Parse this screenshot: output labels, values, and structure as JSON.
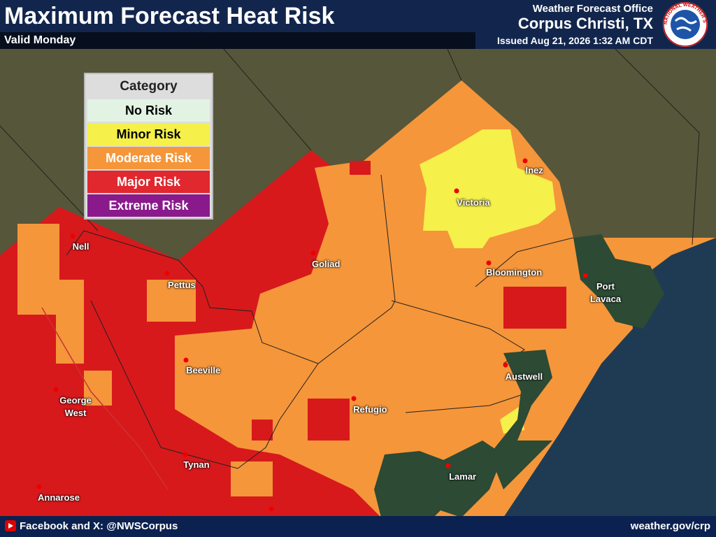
{
  "header": {
    "title": "Maximum Forecast Heat Risk",
    "valid": "Valid Monday",
    "office_label": "Weather Forecast Office",
    "office": "Corpus Christi, TX",
    "issued": "Issued Aug 21, 2026 1:32 AM CDT",
    "logo_text": "NATIONAL WEATHER SERVICE"
  },
  "legend": {
    "title": "Category",
    "items": [
      "No Risk",
      "Minor Risk",
      "Moderate Risk",
      "Major Risk",
      "Extreme Risk"
    ]
  },
  "cities": [
    "Inez",
    "Victoria",
    "Nell",
    "Goliad",
    "Bloomington",
    "Pettus",
    "Port Lavaca",
    "Beeville",
    "Austwell",
    "George West",
    "Refugio",
    "Tynan",
    "Lamar",
    "Annarose"
  ],
  "footer": {
    "social": "Facebook and X: @NWSCorpus",
    "url": "weather.gov/crp"
  }
}
